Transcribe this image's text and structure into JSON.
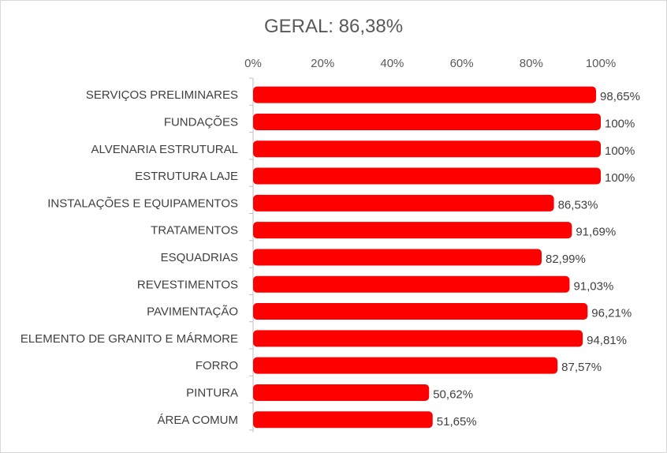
{
  "chart_data": {
    "type": "bar",
    "orientation": "horizontal",
    "title": "GERAL: 86,38%",
    "xlim": [
      0,
      100
    ],
    "x_ticks": [
      "0%",
      "20%",
      "40%",
      "60%",
      "80%",
      "100%"
    ],
    "x_axis_position": "top",
    "grid": false,
    "bar_color": "#ff0000",
    "categories": [
      "SERVIÇOS PRELIMINARES",
      "FUNDAÇÕES",
      "ALVENARIA ESTRUTURAL",
      "ESTRUTURA LAJE",
      "INSTALAÇÕES E EQUIPAMENTOS",
      "TRATAMENTOS",
      "ESQUADRIAS",
      "REVESTIMENTOS",
      "PAVIMENTAÇÃO",
      "ELEMENTO DE GRANITO E MÁRMORE",
      "FORRO",
      "PINTURA",
      "ÁREA COMUM"
    ],
    "values": [
      98.65,
      100,
      100,
      100,
      86.53,
      91.69,
      82.99,
      91.03,
      96.21,
      94.81,
      87.57,
      50.62,
      51.65
    ],
    "data_labels": [
      "98,65%",
      "100%",
      "100%",
      "100%",
      "86,53%",
      "91,69%",
      "82,99%",
      "91,03%",
      "96,21%",
      "94,81%",
      "87,57%",
      "50,62%",
      "51,65%"
    ]
  }
}
